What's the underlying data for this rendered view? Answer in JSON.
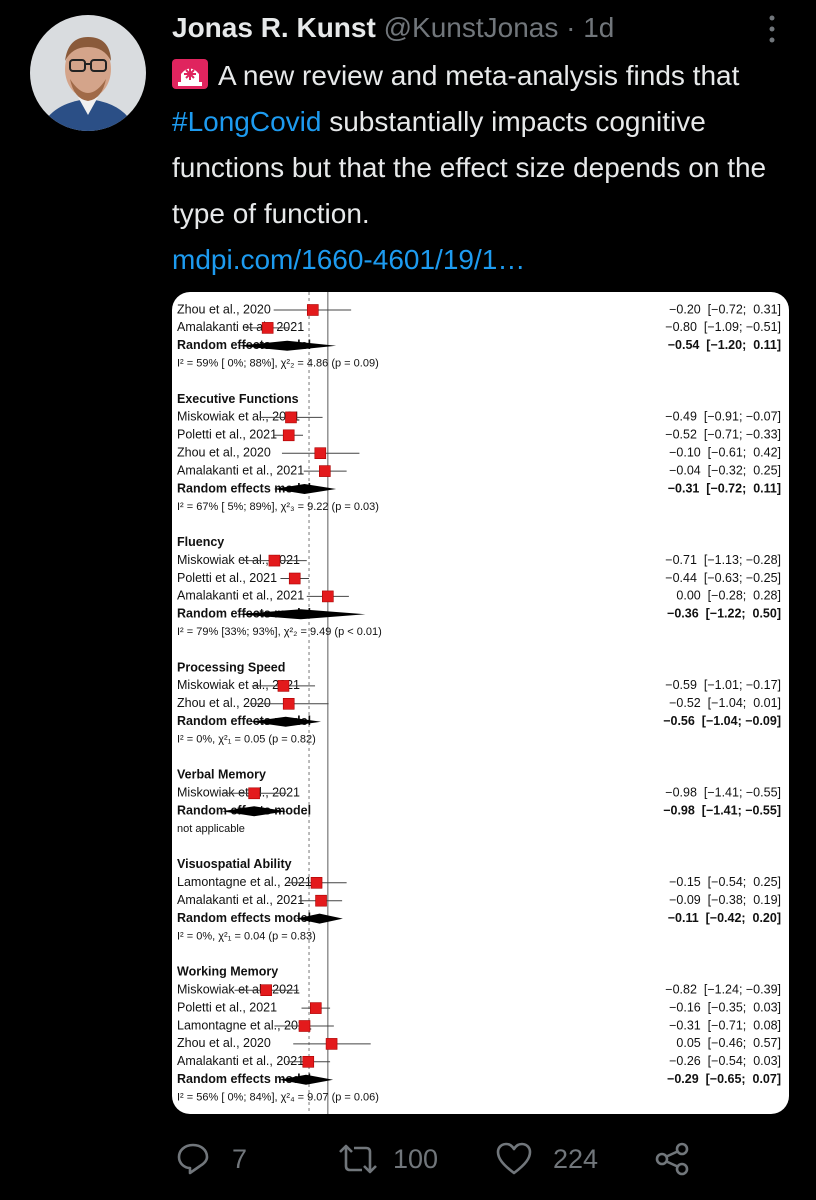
{
  "tweet": {
    "author": "Jonas R. Kunst",
    "handle": "@KunstJonas",
    "separator": "·",
    "time": "1d",
    "text_before": "A new review and meta-analysis finds that ",
    "hashtag": "#LongCovid",
    "text_after": " substantially impacts cognitive functions but that the effect size depends on the type of function.",
    "link": "mdpi.com/1660-4601/19/1…",
    "replies": 7,
    "retweets": 100,
    "likes": 224
  },
  "forest_plot": {
    "xlim": [
      -1.5,
      0.8
    ],
    "null_effect": 0,
    "pooled_estimate": -0.25,
    "groups": [
      {
        "title": null,
        "studies": [
          {
            "name": "Zhou et al., 2020",
            "estimate": -0.2,
            "ci": [
              -0.72,
              0.31
            ],
            "label": "−0.20  [−0.72;  0.31]"
          },
          {
            "name": "Amalakanti et al., 2021",
            "estimate": -0.8,
            "ci": [
              -1.09,
              -0.51
            ],
            "label": "−0.80  [−1.09; −0.51]"
          }
        ],
        "random_effects": {
          "name": "Random effects model",
          "estimate": -0.54,
          "ci": [
            -1.2,
            0.11
          ],
          "label": "−0.54  [−1.20;  0.11]"
        },
        "heterogeneity": "I² = 59% [ 0%; 88%], χ²₂ = 4.86 (p = 0.09)"
      },
      {
        "title": "Executive Functions",
        "studies": [
          {
            "name": "Miskowiak et al., 2021",
            "estimate": -0.49,
            "ci": [
              -0.91,
              -0.07
            ],
            "label": "−0.49  [−0.91; −0.07]"
          },
          {
            "name": "Poletti et al., 2021",
            "estimate": -0.52,
            "ci": [
              -0.71,
              -0.33
            ],
            "label": "−0.52  [−0.71; −0.33]"
          },
          {
            "name": "Zhou et al., 2020",
            "estimate": -0.1,
            "ci": [
              -0.61,
              0.42
            ],
            "label": "−0.10  [−0.61;  0.42]"
          },
          {
            "name": "Amalakanti et al., 2021",
            "estimate": -0.04,
            "ci": [
              -0.32,
              0.25
            ],
            "label": "−0.04  [−0.32;  0.25]"
          }
        ],
        "random_effects": {
          "name": "Random effects model",
          "estimate": -0.31,
          "ci": [
            -0.72,
            0.11
          ],
          "label": "−0.31  [−0.72;  0.11]"
        },
        "heterogeneity": "I² = 67% [ 5%; 89%], χ²₃ = 9.22 (p = 0.03)"
      },
      {
        "title": "Fluency",
        "studies": [
          {
            "name": "Miskowiak et al., 2021",
            "estimate": -0.71,
            "ci": [
              -1.13,
              -0.28
            ],
            "label": "−0.71  [−1.13; −0.28]"
          },
          {
            "name": "Poletti et al., 2021",
            "estimate": -0.44,
            "ci": [
              -0.63,
              -0.25
            ],
            "label": "−0.44  [−0.63; −0.25]"
          },
          {
            "name": "Amalakanti et al., 2021",
            "estimate": 0.0,
            "ci": [
              -0.28,
              0.28
            ],
            "label": "0.00  [−0.28;  0.28]"
          }
        ],
        "random_effects": {
          "name": "Random effects model",
          "estimate": -0.36,
          "ci": [
            -1.22,
            0.5
          ],
          "label": "−0.36  [−1.22;  0.50]"
        },
        "heterogeneity": "I² = 79% [33%; 93%], χ²₂ = 9.49 (p < 0.01)"
      },
      {
        "title": "Processing Speed",
        "studies": [
          {
            "name": "Miskowiak et al., 2021",
            "estimate": -0.59,
            "ci": [
              -1.01,
              -0.17
            ],
            "label": "−0.59  [−1.01; −0.17]"
          },
          {
            "name": "Zhou et al., 2020",
            "estimate": -0.52,
            "ci": [
              -1.04,
              0.01
            ],
            "label": "−0.52  [−1.04;  0.01]"
          }
        ],
        "random_effects": {
          "name": "Random effects model",
          "estimate": -0.56,
          "ci": [
            -1.04,
            -0.09
          ],
          "label": "−0.56  [−1.04; −0.09]"
        },
        "heterogeneity": "I² = 0%, χ²₁ = 0.05 (p = 0.82)"
      },
      {
        "title": "Verbal Memory",
        "studies": [
          {
            "name": "Miskowiak et al., 2021",
            "estimate": -0.98,
            "ci": [
              -1.41,
              -0.55
            ],
            "label": "−0.98  [−1.41; −0.55]"
          }
        ],
        "random_effects": {
          "name": "Random effects model",
          "estimate": -0.98,
          "ci": [
            -1.41,
            -0.55
          ],
          "label": "−0.98  [−1.41; −0.55]"
        },
        "heterogeneity": "not applicable"
      },
      {
        "title": "Visuospatial Ability",
        "studies": [
          {
            "name": "Lamontagne et al., 2021",
            "estimate": -0.15,
            "ci": [
              -0.54,
              0.25
            ],
            "label": "−0.15  [−0.54;  0.25]"
          },
          {
            "name": "Amalakanti et al., 2021",
            "estimate": -0.09,
            "ci": [
              -0.38,
              0.19
            ],
            "label": "−0.09  [−0.38;  0.19]"
          }
        ],
        "random_effects": {
          "name": "Random effects model",
          "estimate": -0.11,
          "ci": [
            -0.42,
            0.2
          ],
          "label": "−0.11  [−0.42;  0.20]"
        },
        "heterogeneity": "I² = 0%, χ²₁ = 0.04 (p = 0.83)"
      },
      {
        "title": "Working Memory",
        "studies": [
          {
            "name": "Miskowiak et al., 2021",
            "estimate": -0.82,
            "ci": [
              -1.24,
              -0.39
            ],
            "label": "−0.82  [−1.24; −0.39]"
          },
          {
            "name": "Poletti et al., 2021",
            "estimate": -0.16,
            "ci": [
              -0.35,
              0.03
            ],
            "label": "−0.16  [−0.35;  0.03]"
          },
          {
            "name": "Lamontagne et al., 2021",
            "estimate": -0.31,
            "ci": [
              -0.71,
              0.08
            ],
            "label": "−0.31  [−0.71;  0.08]"
          },
          {
            "name": "Zhou et al., 2020",
            "estimate": 0.05,
            "ci": [
              -0.46,
              0.57
            ],
            "label": "0.05  [−0.46;  0.57]"
          },
          {
            "name": "Amalakanti et al., 2021",
            "estimate": -0.26,
            "ci": [
              -0.54,
              0.03
            ],
            "label": "−0.26  [−0.54;  0.03]"
          }
        ],
        "random_effects": {
          "name": "Random effects model",
          "estimate": -0.29,
          "ci": [
            -0.65,
            0.07
          ],
          "label": "−0.29  [−0.65;  0.07]"
        },
        "heterogeneity": "I² = 56% [ 0%; 84%], χ²₄ = 9.07 (p = 0.06)"
      }
    ]
  }
}
